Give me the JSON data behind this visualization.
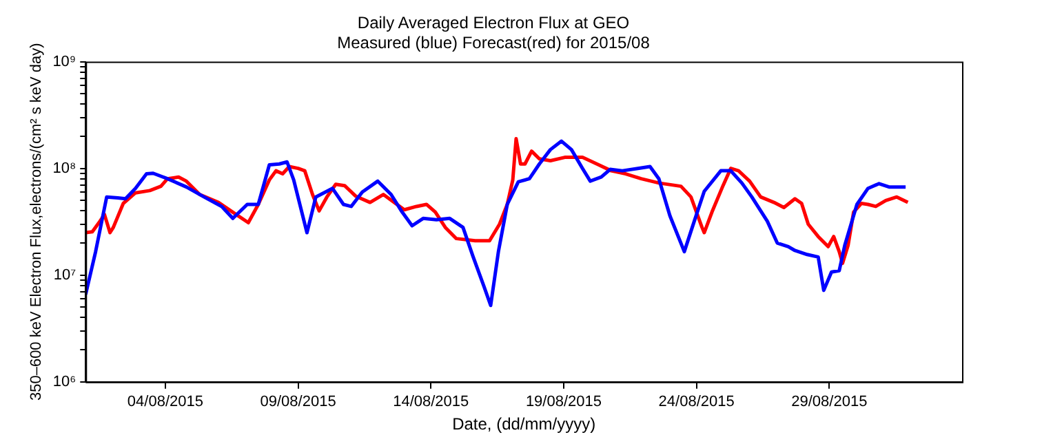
{
  "chart_data": {
    "type": "line",
    "title": "Daily Averaged Electron Flux at GEO",
    "subtitle": "Measured (blue) Forecast(red) for 2015/08",
    "xlabel": "Date, (dd/mm/yyyy)",
    "ylabel": "350–600 keV Electron Flux,electrons/(cm² s keV day)",
    "log": "y",
    "grid": false,
    "legend": false,
    "marker": "none",
    "line_style": "solid",
    "xlim": [
      "2015-08-01",
      "2015-09-03"
    ],
    "xticks": [
      {
        "value": "2015-08-04",
        "label": "04/08/2015"
      },
      {
        "value": "2015-08-09",
        "label": "09/08/2015"
      },
      {
        "value": "2015-08-14",
        "label": "14/08/2015"
      },
      {
        "value": "2015-08-19",
        "label": "19/08/2015"
      },
      {
        "value": "2015-08-24",
        "label": "24/08/2015"
      },
      {
        "value": "2015-08-29",
        "label": "29/08/2015"
      }
    ],
    "ylim": [
      1000000,
      1000000000
    ],
    "yticks": [
      {
        "value": 1000000,
        "label": "10⁶"
      },
      {
        "value": 2000000,
        "label": null
      },
      {
        "value": 3000000,
        "label": null
      },
      {
        "value": 4000000,
        "label": null
      },
      {
        "value": 5000000,
        "label": null
      },
      {
        "value": 6000000,
        "label": null
      },
      {
        "value": 7000000,
        "label": null
      },
      {
        "value": 8000000,
        "label": null
      },
      {
        "value": 9000000,
        "label": null
      },
      {
        "value": 10000000,
        "label": "10⁷"
      },
      {
        "value": 20000000,
        "label": null
      },
      {
        "value": 30000000,
        "label": null
      },
      {
        "value": 40000000,
        "label": null
      },
      {
        "value": 50000000,
        "label": null
      },
      {
        "value": 60000000,
        "label": null
      },
      {
        "value": 70000000,
        "label": null
      },
      {
        "value": 80000000,
        "label": null
      },
      {
        "value": 90000000,
        "label": null
      },
      {
        "value": 100000000,
        "label": "10⁸"
      },
      {
        "value": 200000000,
        "label": null
      },
      {
        "value": 300000000,
        "label": null
      },
      {
        "value": 400000000,
        "label": null
      },
      {
        "value": 500000000,
        "label": null
      },
      {
        "value": 600000000,
        "label": null
      },
      {
        "value": 700000000,
        "label": null
      },
      {
        "value": 800000000,
        "label": null
      },
      {
        "value": 900000000,
        "label": null
      },
      {
        "value": 1000000000,
        "label": "10⁹"
      }
    ],
    "series": [
      {
        "color": "#0000ff",
        "x": [
          "2015-08-01T00:00",
          "2015-08-01T09:00",
          "2015-08-01T19:00",
          "2015-08-02T05:00",
          "2015-08-02T12:00",
          "2015-08-02T21:00",
          "2015-08-03T07:00",
          "2015-08-03T13:00",
          "2015-08-04T02:00",
          "2015-08-04T19:00",
          "2015-08-05T11:00",
          "2015-08-06T03:00",
          "2015-08-06T13:00",
          "2015-08-07T02:00",
          "2015-08-07T12:00",
          "2015-08-07T22:00",
          "2015-08-08T07:00",
          "2015-08-08T14:00",
          "2015-08-08T20:00",
          "2015-08-09T08:00",
          "2015-08-09T16:00",
          "2015-08-10T07:00",
          "2015-08-10T17:00",
          "2015-08-11T00:00",
          "2015-08-11T10:00",
          "2015-08-12T00:00",
          "2015-08-12T12:00",
          "2015-08-12T22:00",
          "2015-08-13T07:00",
          "2015-08-13T17:00",
          "2015-08-14T05:00",
          "2015-08-14T17:00",
          "2015-08-15T05:00",
          "2015-08-15T14:00",
          "2015-08-16T00:00",
          "2015-08-16T06:00",
          "2015-08-16T13:00",
          "2015-08-16T21:00",
          "2015-08-17T07:00",
          "2015-08-17T17:00",
          "2015-08-18T02:00",
          "2015-08-18T12:00",
          "2015-08-18T22:00",
          "2015-08-19T07:00",
          "2015-08-19T17:00",
          "2015-08-20T00:00",
          "2015-08-20T10:00",
          "2015-08-20T18:00",
          "2015-08-21T05:00",
          "2015-08-21T19:00",
          "2015-08-22T06:00",
          "2015-08-22T14:00",
          "2015-08-23T00:00",
          "2015-08-23T13:00",
          "2015-08-23T22:00",
          "2015-08-24T07:00",
          "2015-08-24T22:00",
          "2015-08-25T07:00",
          "2015-08-25T17:00",
          "2015-08-26T02:00",
          "2015-08-26T16:00",
          "2015-08-27T01:00",
          "2015-08-27T11:00",
          "2015-08-27T17:00",
          "2015-08-28T04:00",
          "2015-08-28T14:00",
          "2015-08-28T19:00",
          "2015-08-29T02:00",
          "2015-08-29T09:00",
          "2015-08-29T14:00",
          "2015-08-30T01:00",
          "2015-08-30T11:00",
          "2015-08-30T21:00",
          "2015-08-31T06:00",
          "2015-08-31T21:00"
        ],
        "values": [
          6600000,
          16600000,
          54000000,
          53000000,
          52000000,
          65000000,
          89000000,
          90000000,
          80000000,
          67000000,
          54000000,
          44000000,
          34000000,
          46000000,
          46000000,
          108000000,
          110000000,
          115000000,
          78000000,
          25000000,
          54000000,
          65000000,
          46000000,
          44000000,
          60000000,
          76000000,
          57000000,
          39000000,
          29000000,
          34000000,
          33000000,
          34000000,
          28000000,
          15000000,
          7800000,
          5200000,
          16600000,
          46000000,
          75000000,
          80000000,
          110000000,
          150000000,
          180000000,
          150000000,
          100000000,
          76000000,
          83000000,
          98000000,
          95000000,
          100000000,
          104000000,
          80000000,
          36000000,
          16600000,
          32000000,
          61000000,
          95000000,
          95000000,
          73000000,
          54000000,
          32000000,
          20000000,
          18500000,
          17000000,
          15600000,
          14800000,
          7200000,
          10700000,
          11000000,
          19000000,
          46000000,
          65000000,
          72000000,
          67000000,
          67000000
        ]
      },
      {
        "color": "#ff0000",
        "x": [
          "2015-08-01T00:00",
          "2015-08-01T06:00",
          "2015-08-01T12:00",
          "2015-08-01T17:00",
          "2015-08-01T22:00",
          "2015-08-02T01:00",
          "2015-08-02T10:00",
          "2015-08-02T21:00",
          "2015-08-03T10:00",
          "2015-08-03T20:00",
          "2015-08-04T02:00",
          "2015-08-04T12:00",
          "2015-08-04T19:00",
          "2015-08-05T07:00",
          "2015-08-06T00:00",
          "2015-08-06T16:00",
          "2015-08-07T03:00",
          "2015-08-07T12:00",
          "2015-08-07T22:00",
          "2015-08-08T04:00",
          "2015-08-08T10:00",
          "2015-08-08T16:00",
          "2015-08-09T00:00",
          "2015-08-09T06:00",
          "2015-08-09T13:00",
          "2015-08-09T19:00",
          "2015-08-10T02:00",
          "2015-08-10T10:00",
          "2015-08-10T18:00",
          "2015-08-11T04:00",
          "2015-08-11T17:00",
          "2015-08-12T05:00",
          "2015-08-12T16:00",
          "2015-08-13T00:00",
          "2015-08-13T11:00",
          "2015-08-13T20:00",
          "2015-08-14T04:00",
          "2015-08-14T13:00",
          "2015-08-14T23:00",
          "2015-08-15T16:00",
          "2015-08-16T05:00",
          "2015-08-16T14:00",
          "2015-08-16T21:00",
          "2015-08-17T02:00",
          "2015-08-17T05:00",
          "2015-08-17T09:00",
          "2015-08-17T13:00",
          "2015-08-17T19:00",
          "2015-08-18T02:00",
          "2015-08-18T12:00",
          "2015-08-19T01:00",
          "2015-08-19T17:00",
          "2015-08-20T06:00",
          "2015-08-20T19:00",
          "2015-08-21T08:00",
          "2015-08-21T22:00",
          "2015-08-22T14:00",
          "2015-08-23T10:00",
          "2015-08-23T19:00",
          "2015-08-24T05:00",
          "2015-08-24T07:00",
          "2015-08-24T14:00",
          "2015-08-25T00:00",
          "2015-08-25T07:00",
          "2015-08-25T14:00",
          "2015-08-26T00:00",
          "2015-08-26T10:00",
          "2015-08-26T22:00",
          "2015-08-27T07:00",
          "2015-08-27T17:00",
          "2015-08-27T23:00",
          "2015-08-28T05:00",
          "2015-08-28T14:00",
          "2015-08-28T23:00",
          "2015-08-29T04:00",
          "2015-08-29T09:00",
          "2015-08-29T12:00",
          "2015-08-29T17:00",
          "2015-08-29T22:00",
          "2015-08-30T05:00",
          "2015-08-30T11:00",
          "2015-08-30T18:00",
          "2015-08-31T03:00",
          "2015-08-31T13:00",
          "2015-08-31T23:00"
        ],
        "values": [
          25000000,
          25500000,
          31000000,
          37000000,
          25000000,
          28000000,
          47000000,
          59000000,
          62000000,
          68000000,
          80000000,
          83000000,
          76000000,
          57000000,
          48000000,
          37000000,
          31000000,
          46000000,
          78000000,
          95000000,
          89000000,
          104000000,
          100000000,
          95000000,
          57000000,
          40000000,
          54000000,
          71000000,
          69000000,
          55000000,
          48000000,
          57000000,
          47000000,
          41000000,
          44000000,
          46000000,
          39000000,
          28000000,
          22000000,
          21000000,
          21000000,
          30000000,
          46000000,
          78000000,
          190000000,
          110000000,
          110000000,
          145000000,
          123000000,
          118000000,
          127000000,
          127000000,
          110000000,
          95000000,
          89000000,
          80000000,
          73000000,
          68000000,
          54000000,
          28000000,
          25000000,
          39000000,
          69000000,
          100000000,
          95000000,
          76000000,
          54000000,
          48000000,
          43000000,
          52000000,
          47000000,
          30000000,
          23000000,
          18500000,
          23000000,
          16600000,
          12900000,
          19000000,
          39000000,
          47000000,
          46000000,
          44000000,
          50000000,
          54000000,
          48000000
        ]
      }
    ]
  }
}
